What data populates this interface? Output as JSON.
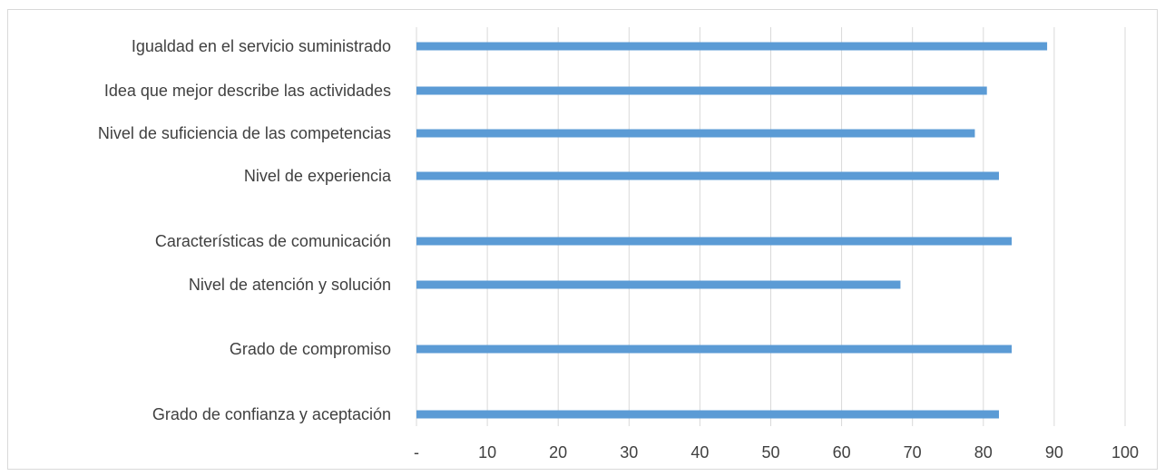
{
  "chart_data": {
    "type": "bar",
    "orientation": "horizontal",
    "categories": [
      "Igualdad en el servicio suministrado",
      "Idea que mejor describe las actividades",
      "Nivel de suficiencia de las competencias",
      "Nivel de experiencia",
      "Características de comunicación",
      "Nivel de atención y solución",
      "Grado de compromiso",
      "Grado de confianza y aceptación"
    ],
    "values": [
      89,
      80.5,
      78.8,
      82.2,
      84,
      68.3,
      84,
      82.2
    ],
    "xlim": [
      0,
      100
    ],
    "x_ticks": [
      "-",
      "10",
      "20",
      "30",
      "40",
      "50",
      "60",
      "70",
      "80",
      "90",
      "100"
    ],
    "grid": true,
    "legend": "none",
    "colors": {
      "bar": "#5b9bd5",
      "grid": "#d9d9d9",
      "text": "#404040"
    }
  }
}
